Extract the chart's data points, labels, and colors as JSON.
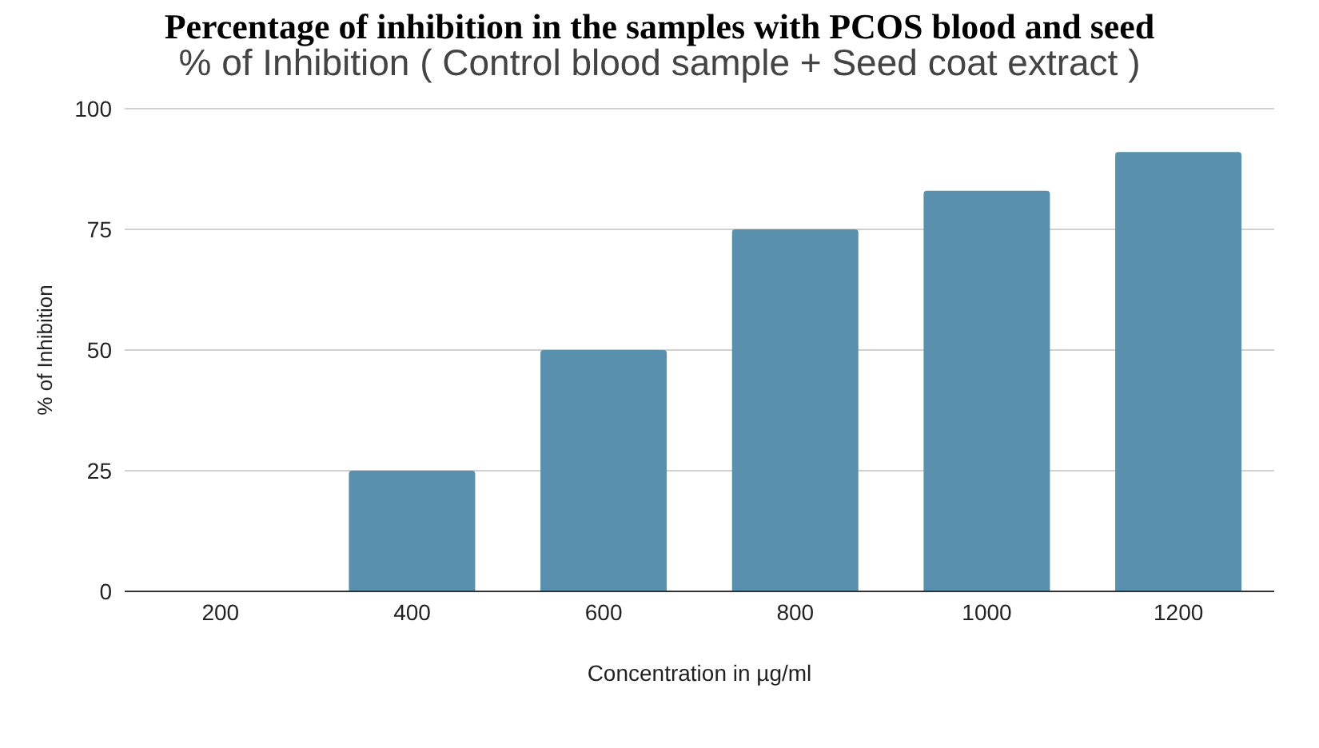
{
  "chart_data": {
    "type": "bar",
    "title": "Percentage of inhibition in the samples with PCOS blood and seed",
    "subtitle": "% of Inhibition ( Control blood sample + Seed coat extract )",
    "xlabel": "Concentration in µg/ml",
    "ylabel": "% of Inhibition",
    "categories": [
      "200",
      "400",
      "600",
      "800",
      "1000",
      "1200"
    ],
    "values": [
      0,
      25,
      50,
      75,
      83,
      91
    ],
    "color": "#5890ad",
    "ylim": [
      0,
      100
    ],
    "yticks": [
      0,
      25,
      50,
      75,
      100
    ],
    "grid": "y"
  }
}
